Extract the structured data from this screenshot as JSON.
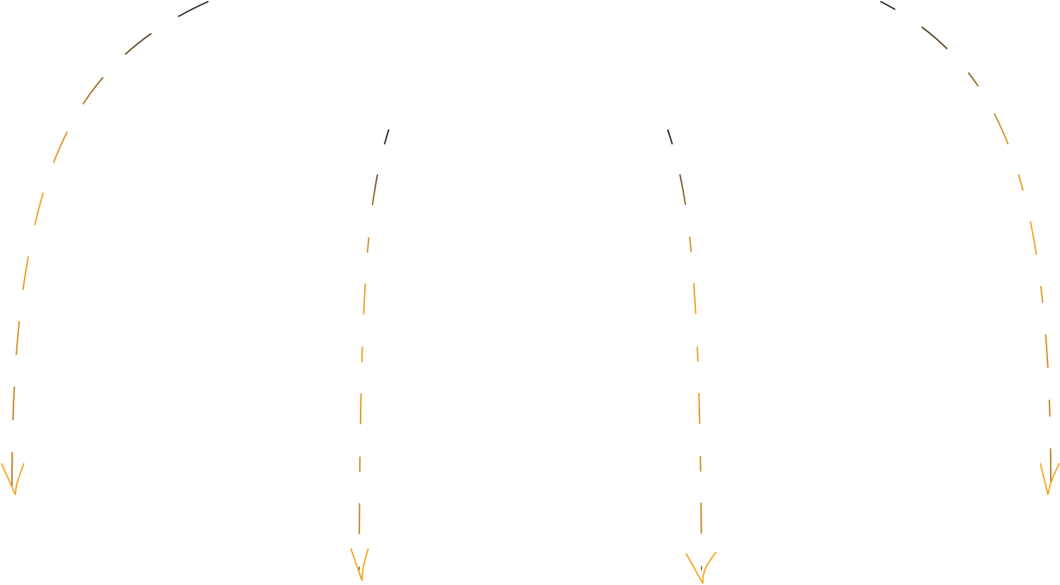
{
  "diagram": {
    "colors": {
      "stroke_start": "#222222",
      "stroke_mid": "#f5a623",
      "stroke_end": "#b07a20",
      "arrowhead": "#f5a623"
    },
    "arrows": [
      {
        "id": "outer-left",
        "style": "dashed",
        "direction": "down"
      },
      {
        "id": "inner-left",
        "style": "dashed",
        "direction": "down"
      },
      {
        "id": "inner-right",
        "style": "dashed",
        "direction": "down"
      },
      {
        "id": "outer-right",
        "style": "dashed",
        "direction": "down"
      }
    ]
  }
}
